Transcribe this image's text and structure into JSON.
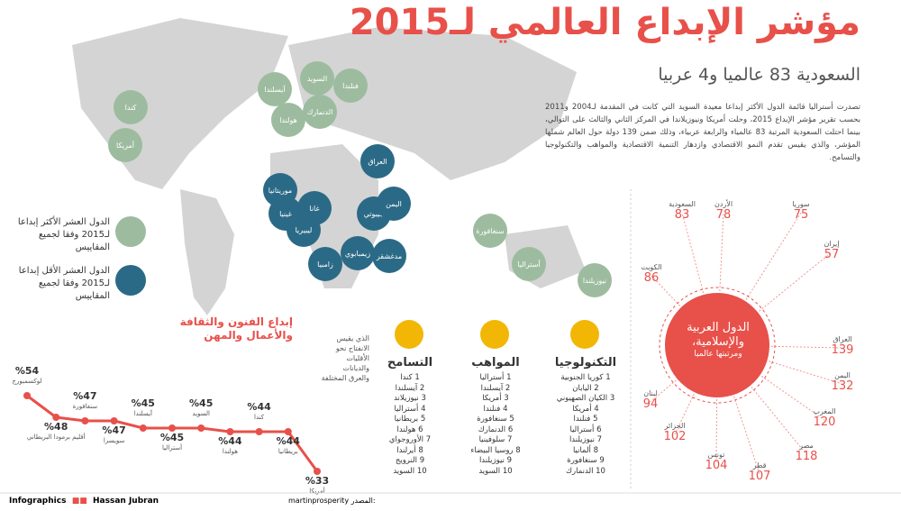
{
  "header": {
    "title": "مؤشر الإبداع العالمي لـ2015",
    "subtitle": "السعودية 83 عالميا و4 عربيا",
    "intro": "تصدرت أستراليا قائمة الدول الأكثر إبداعا معيدة السويد التي كانت في المقدمة لـ2004 و2011 بحسب تقرير مؤشر الإبداع 2015، وحلت أمريكا ونيوزيلاندا في المركز الثاني والثالث على التوالي، بينما احتلت السعودية المرتبة 83 عالمياء والرابعة عربياء، وذلك ضمن 139 دولة حول العالم شملها المؤشر، والذي يقيس تقدم النمو الاقتصادي وازدهار التنمية الاقتصادية والمواهب والتكنولوجيا والتسامح."
  },
  "legend": [
    {
      "label": "الدول العشر الأكثر إبداعا لـ2015 وفقا لجميع المقاييس",
      "color": "#9dbc9f"
    },
    {
      "label": "الدول العشر الأقل إبداعا لـ2015 وفقا لجميع المقاييس",
      "color": "#2b6a86"
    }
  ],
  "map_bubbles": {
    "most": [
      "كندا",
      "أمريكا",
      "آيسلندا",
      "السويد",
      "فنلندا",
      "هولندا",
      "الدنمارك",
      "سنغافورة",
      "أستراليا",
      "نيوزيلندا"
    ],
    "least": [
      "العراق",
      "موريتانيا",
      "غانا",
      "غينيا",
      "ليبيريا",
      "جيبوتي",
      "اليمن",
      "زيمبابوي",
      "مدغشقر",
      "زامبيا"
    ]
  },
  "arab_ranks": {
    "title": "الدول العربية والإسلامية،",
    "subtitle": "ومرتبتها عالميا",
    "items": [
      {
        "country": "السعودية",
        "rank": "83"
      },
      {
        "country": "الأردن",
        "rank": "78"
      },
      {
        "country": "سوريا",
        "rank": "75"
      },
      {
        "country": "إيران",
        "rank": "57"
      },
      {
        "country": "الكويت",
        "rank": "86"
      },
      {
        "country": "العراق",
        "rank": "139"
      },
      {
        "country": "اليمن",
        "rank": "132"
      },
      {
        "country": "المغرب",
        "rank": "120"
      },
      {
        "country": "مصر",
        "rank": "118"
      },
      {
        "country": "قطر",
        "rank": "107"
      },
      {
        "country": "تونس",
        "rank": "104"
      },
      {
        "country": "الجزائر",
        "rank": "102"
      },
      {
        "country": "لبنان",
        "rank": "94"
      }
    ]
  },
  "categories": [
    {
      "title": "التكنولوجيا",
      "items": [
        "1 كوريا الجنوبية",
        "2 اليابان",
        "3 الكيان الصهيوني",
        "4 أمريكا",
        "5 فنلندا",
        "6 أستراليا",
        "7 نيوزيلندا",
        "8 ألمانيا",
        "9 سنغافورة",
        "10 الدنمارك"
      ]
    },
    {
      "title": "المواهب",
      "items": [
        "1 أستراليا",
        "2 آيسلندا",
        "3 أمريكا",
        "4 فنلندا",
        "5 سنغافورة",
        "6 الدنمارك",
        "7 سلوفينيا",
        "8 روسيا البيضاء",
        "9 نيوزيلندا",
        "10 السويد"
      ]
    },
    {
      "title": "التسامح",
      "items": [
        "1 كندا",
        "2 آيسلندا",
        "3 نيوزيلاند",
        "4 أستراليا",
        "5 بريطانيا",
        "6 هولندا",
        "7 الأوروجواي",
        "8 أيرلندا",
        "9 النرويج",
        "10 السويد"
      ]
    }
  ],
  "tolerance_note": "الذي يقيس الانفتاح نحو الأقليات والديانات والعرق المختلفة",
  "arts_chart": {
    "type": "line",
    "title": "إبداع الفنون والثقافة والأعمال والمهن",
    "categories": [
      "لوكسمبورج",
      "أقليم برمودا البريطاني",
      "سنغافورة",
      "سويسرا",
      "آيسلندا",
      "أستراليا",
      "السويد",
      "هولندا",
      "كندا",
      "بريطانيا",
      "أمريكا"
    ],
    "values": [
      54,
      48,
      47,
      47,
      45,
      45,
      45,
      44,
      44,
      44,
      33
    ],
    "value_labels": [
      "%54",
      "%48",
      "%47",
      "%47",
      "%45",
      "%45",
      "%45",
      "%44",
      "%44",
      "%44",
      "%33"
    ],
    "ylim": [
      30,
      55
    ],
    "color": "#e8504a"
  },
  "footer": {
    "brand": "Infographics",
    "author": "Hassan Jubran",
    "source_label": "المصدر:",
    "source": "martinprosperity"
  }
}
